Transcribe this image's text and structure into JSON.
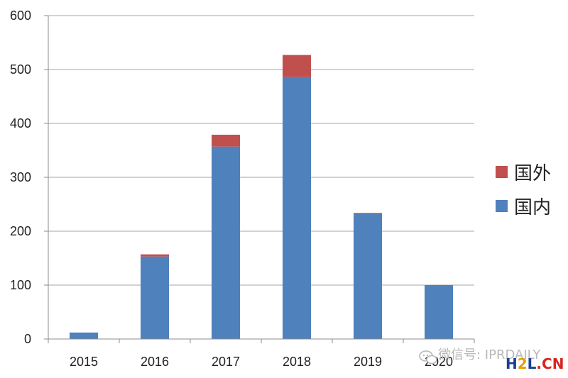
{
  "chart_data": {
    "type": "bar",
    "stacked": true,
    "categories": [
      "2015",
      "2016",
      "2017",
      "2018",
      "2019",
      "2020"
    ],
    "series": [
      {
        "name": "国内",
        "values": [
          12,
          153,
          357,
          486,
          232,
          100
        ],
        "color": "#4f81bd"
      },
      {
        "name": "国外",
        "values": [
          0,
          4,
          22,
          41,
          2,
          0
        ],
        "color": "#c0504d"
      }
    ],
    "ylim": [
      0,
      600
    ],
    "yticks": [
      0,
      100,
      200,
      300,
      400,
      500,
      600
    ],
    "grid": true,
    "legend_position": "right",
    "legend_order": [
      "国外",
      "国内"
    ]
  },
  "watermark": {
    "wechat": "微信号: IPRDAILY",
    "site_h": "H",
    "site_2": "2",
    "site_l": "L",
    "site_cn": ".CN"
  }
}
